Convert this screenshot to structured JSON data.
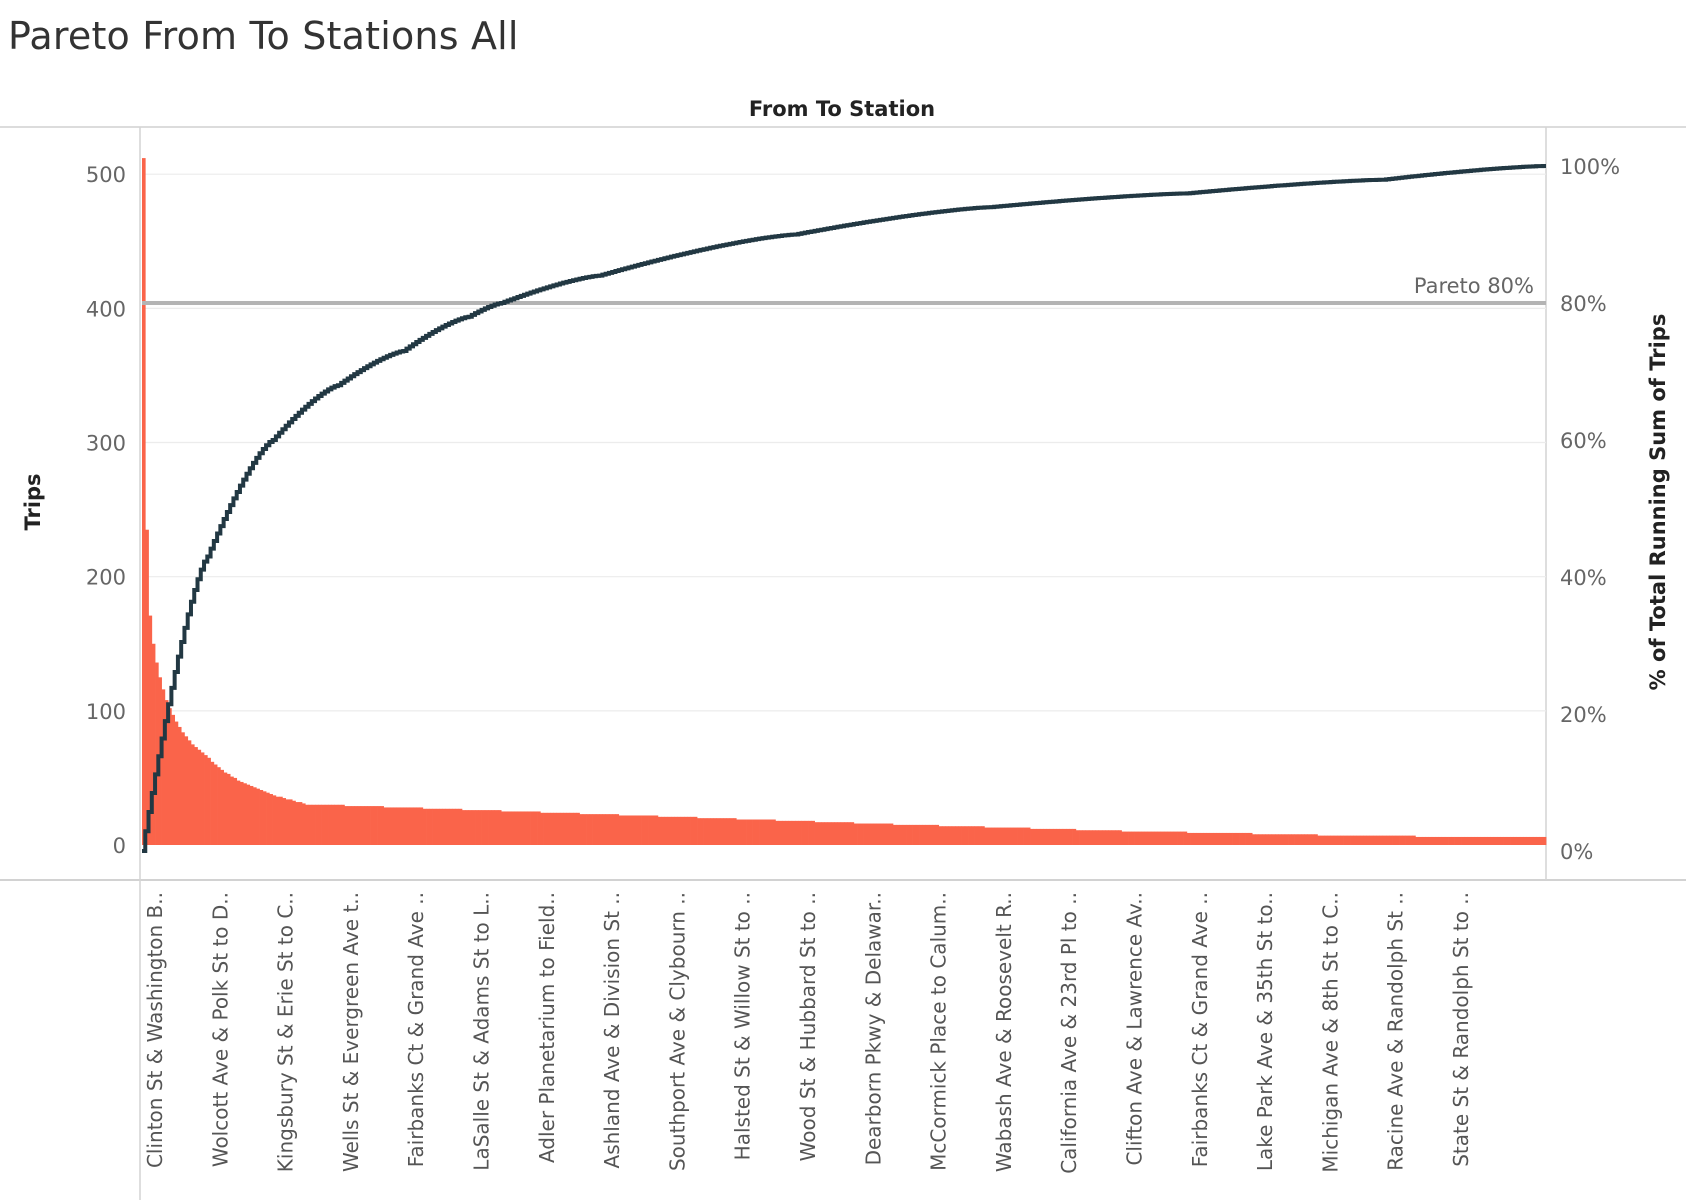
{
  "page_title": "Pareto From To Stations All",
  "colors": {
    "bars": "#fa644a",
    "line": "#223843",
    "reference_line": "#b4b4b4",
    "gridline": "#ececec",
    "frame": "#cfcfcf"
  },
  "chart_data": {
    "type": "bar",
    "title": "Pareto From To Stations All",
    "column_header": "From To Station",
    "ylabel": "Trips",
    "y2label": "% of Total Running Sum of Trips",
    "ylim": [
      0,
      520
    ],
    "y2lim": [
      0,
      1.04
    ],
    "yticks": [
      "0",
      "100",
      "200",
      "300",
      "400",
      "500"
    ],
    "y2ticks": [
      "0%",
      "20%",
      "40%",
      "60%",
      "80%",
      "100%"
    ],
    "grid": true,
    "reference_line": {
      "value": 0.8,
      "label": "Pareto 80%"
    },
    "category_count": 430,
    "categories_labeled": [
      "Clinton St & Washington B..",
      "Wolcott Ave & Polk St to D..",
      "Kingsbury St & Erie St to C..",
      "Wells St & Evergreen Ave t..",
      "Fairbanks Ct & Grand Ave ..",
      "LaSalle St & Adams St to L..",
      "Adler Planetarium to Field..",
      "Ashland Ave & Division St ..",
      "Southport Ave & Clybourn ..",
      "Halsted St & Willow St to ..",
      "Wood St & Hubbard St to ..",
      "Dearborn Pkwy & Delawar..",
      "McCormick Place to Calum..",
      "Wabash Ave & Roosevelt R..",
      "California Ave & 23rd Pl to ..",
      "Clifton Ave & Lawrence Av..",
      "Fairbanks Ct & Grand Ave ..",
      "Lake Park Ave & 35th St to..",
      "Michigan Ave & 8th St to C..",
      "Racine Ave & Randolph St ..",
      "State St & Randolph St to .."
    ],
    "label_every": 20,
    "values_leading": [
      512,
      235,
      171,
      150,
      136,
      125,
      116,
      108,
      102,
      97,
      92,
      88,
      84,
      81,
      78,
      75,
      73,
      71,
      69,
      67
    ],
    "values_steps": [
      {
        "count": 10,
        "values": [
          65,
          62,
          60,
          58,
          56,
          54,
          53,
          51,
          50,
          48
        ]
      },
      {
        "count": 10,
        "values": [
          47,
          46,
          45,
          44,
          43,
          42,
          41,
          40,
          39,
          38
        ]
      },
      {
        "count": 10,
        "values": [
          37,
          36,
          36,
          35,
          34,
          34,
          33,
          32,
          32,
          31
        ]
      },
      {
        "count": 12,
        "values": [
          30
        ]
      },
      {
        "count": 12,
        "values": [
          29
        ]
      },
      {
        "count": 12,
        "values": [
          28
        ]
      },
      {
        "count": 12,
        "values": [
          27
        ]
      },
      {
        "count": 12,
        "values": [
          26
        ]
      },
      {
        "count": 12,
        "values": [
          25
        ]
      },
      {
        "count": 12,
        "values": [
          24
        ]
      },
      {
        "count": 12,
        "values": [
          23
        ]
      },
      {
        "count": 12,
        "values": [
          22
        ]
      },
      {
        "count": 12,
        "values": [
          21
        ]
      },
      {
        "count": 12,
        "values": [
          20
        ]
      },
      {
        "count": 12,
        "values": [
          19
        ]
      },
      {
        "count": 12,
        "values": [
          18
        ]
      },
      {
        "count": 12,
        "values": [
          17
        ]
      },
      {
        "count": 12,
        "values": [
          16
        ]
      },
      {
        "count": 14,
        "values": [
          15
        ]
      },
      {
        "count": 14,
        "values": [
          14
        ]
      },
      {
        "count": 14,
        "values": [
          13
        ]
      },
      {
        "count": 14,
        "values": [
          12
        ]
      },
      {
        "count": 14,
        "values": [
          11
        ]
      },
      {
        "count": 20,
        "values": [
          10
        ]
      },
      {
        "count": 20,
        "values": [
          9
        ]
      },
      {
        "count": 20,
        "values": [
          8
        ]
      },
      {
        "count": 30,
        "values": [
          7
        ]
      },
      {
        "count": 36,
        "values": [
          6
        ]
      }
    ],
    "running_pct_checkpoints": [
      {
        "index": 0,
        "pct": 0.0
      },
      {
        "index": 20,
        "pct": 0.43
      },
      {
        "index": 40,
        "pct": 0.6
      },
      {
        "index": 60,
        "pct": 0.68
      },
      {
        "index": 80,
        "pct": 0.73
      },
      {
        "index": 100,
        "pct": 0.78
      },
      {
        "index": 110,
        "pct": 0.8
      },
      {
        "index": 140,
        "pct": 0.84
      },
      {
        "index": 200,
        "pct": 0.9
      },
      {
        "index": 260,
        "pct": 0.94
      },
      {
        "index": 320,
        "pct": 0.96
      },
      {
        "index": 380,
        "pct": 0.98
      },
      {
        "index": 429,
        "pct": 1.0
      }
    ]
  }
}
